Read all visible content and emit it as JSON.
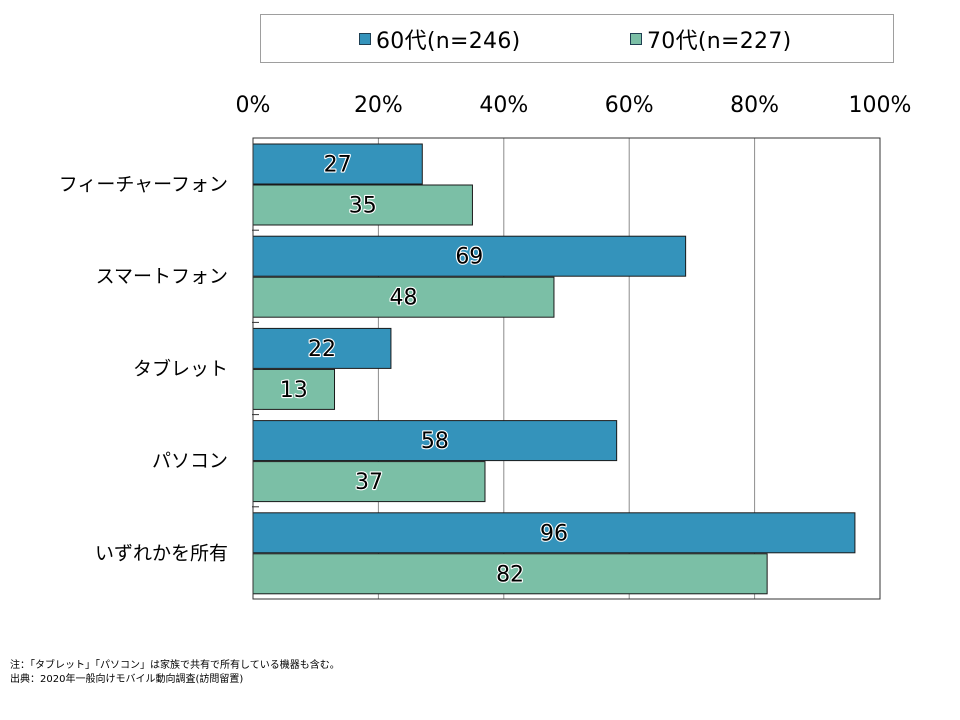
{
  "chart_data": {
    "type": "bar",
    "orientation": "horizontal",
    "categories": [
      "フィーチャーフォン",
      "スマートフォン",
      "タブレット",
      "パソコン",
      "いずれかを所有"
    ],
    "series": [
      {
        "name": "60代(n=246)",
        "color": "#3493bb",
        "values": [
          27,
          69,
          22,
          58,
          96
        ]
      },
      {
        "name": "70代(n=227)",
        "color": "#7bbfa6",
        "values": [
          35,
          48,
          13,
          37,
          82
        ]
      }
    ],
    "x_ticks": [
      "0%",
      "20%",
      "40%",
      "60%",
      "80%",
      "100%"
    ],
    "xlim": [
      0,
      100
    ],
    "grid": true,
    "legend_position": "top"
  },
  "notes": [
    "注：「タブレット」「パソコン」は家族で共有で所有している機器も含む。",
    "出典：2020年一般向けモバイル動向調査(訪問留置)"
  ]
}
